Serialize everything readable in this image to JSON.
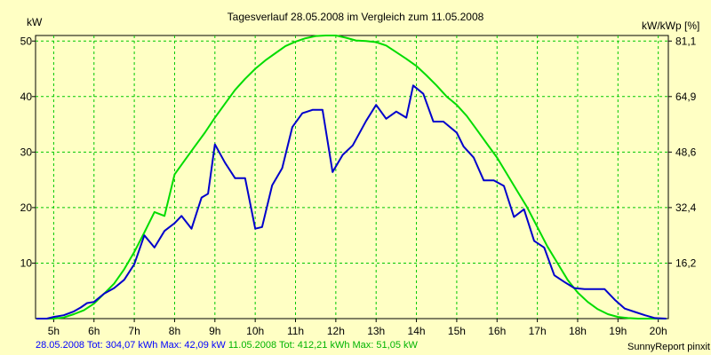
{
  "chart_data": {
    "type": "line",
    "title": "Tagesverlauf 28.05.2008 im Vergleich zum 11.05.2008",
    "ylabel_left": "kW",
    "ylabel_right": "kW/kWp [%]",
    "x_ticks": [
      "5h",
      "6h",
      "7h",
      "8h",
      "9h",
      "10h",
      "11h",
      "12h",
      "13h",
      "14h",
      "15h",
      "16h",
      "17h",
      "18h",
      "19h",
      "20h"
    ],
    "x_tick_hours": [
      5,
      6,
      7,
      8,
      9,
      10,
      11,
      12,
      13,
      14,
      15,
      16,
      17,
      18,
      19,
      20
    ],
    "xlim": [
      4.55,
      20.25
    ],
    "ylim": [
      0,
      51
    ],
    "y_ticks": [
      10,
      20,
      30,
      40,
      50
    ],
    "y_tick_labels": [
      "10",
      "20",
      "30",
      "40",
      "50"
    ],
    "y2_ticks": [
      16.2,
      32.4,
      48.6,
      64.9,
      81.1
    ],
    "y2_tick_labels": [
      "16,2",
      "32,4",
      "48,6",
      "64,9",
      "81,1"
    ],
    "grid": true,
    "series": [
      {
        "name": "28.05.2008",
        "color": "#0000cc",
        "x": [
          4.57,
          4.83,
          5.0,
          5.25,
          5.5,
          5.67,
          5.83,
          6.0,
          6.25,
          6.5,
          6.75,
          7.0,
          7.25,
          7.5,
          7.75,
          8.0,
          8.17,
          8.42,
          8.67,
          8.83,
          9.0,
          9.25,
          9.5,
          9.75,
          10.0,
          10.17,
          10.42,
          10.67,
          10.92,
          11.17,
          11.42,
          11.67,
          11.92,
          12.17,
          12.42,
          12.75,
          13.0,
          13.25,
          13.5,
          13.75,
          13.92,
          14.17,
          14.42,
          14.67,
          15.0,
          15.17,
          15.42,
          15.67,
          15.92,
          16.17,
          16.42,
          16.67,
          16.92,
          17.17,
          17.42,
          17.67,
          17.92,
          18.17,
          18.42,
          18.67,
          18.92,
          19.17,
          19.42,
          19.67,
          19.92,
          20.2
        ],
        "y": [
          0,
          0,
          0.3,
          0.6,
          1.3,
          2.0,
          2.8,
          3.0,
          4.5,
          5.5,
          7.0,
          9.8,
          15.0,
          12.8,
          15.8,
          17.2,
          18.5,
          16.2,
          21.8,
          22.5,
          31.4,
          28.1,
          25.3,
          25.3,
          16.2,
          16.5,
          24.0,
          27.1,
          34.5,
          37.0,
          37.6,
          37.6,
          26.4,
          29.5,
          31.2,
          35.6,
          38.5,
          36.0,
          37.3,
          36.2,
          42.0,
          40.5,
          35.5,
          35.5,
          33.5,
          31.0,
          29.0,
          24.9,
          24.9,
          23.9,
          18.3,
          19.7,
          14.0,
          12.8,
          7.8,
          6.6,
          5.5,
          5.3,
          5.3,
          5.3,
          3.4,
          1.8,
          1.2,
          0.6,
          0.1,
          0
        ]
      },
      {
        "name": "11.05.2008",
        "color": "#00dc00",
        "x": [
          4.57,
          4.83,
          5.0,
          5.25,
          5.5,
          5.75,
          6.0,
          6.25,
          6.5,
          6.75,
          7.0,
          7.25,
          7.5,
          7.75,
          8.0,
          8.25,
          8.5,
          8.75,
          9.0,
          9.25,
          9.5,
          9.75,
          10.0,
          10.25,
          10.5,
          10.75,
          11.0,
          11.25,
          11.5,
          11.75,
          12.0,
          12.25,
          12.5,
          12.75,
          13.0,
          13.25,
          13.5,
          13.75,
          14.0,
          14.25,
          14.5,
          14.75,
          15.0,
          15.25,
          15.5,
          15.75,
          16.0,
          16.25,
          16.5,
          16.75,
          17.0,
          17.25,
          17.5,
          17.75,
          18.0,
          18.25,
          18.5,
          18.75,
          19.0,
          19.25,
          19.5,
          19.75,
          20.0,
          20.2
        ],
        "y": [
          0,
          0,
          0,
          0.2,
          0.8,
          1.5,
          2.7,
          4.5,
          6.3,
          8.9,
          12.0,
          15.5,
          19.2,
          18.5,
          26.0,
          28.5,
          31.0,
          33.5,
          36.2,
          38.7,
          41.2,
          43.2,
          45.0,
          46.5,
          47.8,
          49.1,
          49.9,
          50.5,
          50.9,
          51.0,
          51.0,
          50.6,
          50.1,
          50.0,
          49.8,
          49.2,
          48.0,
          46.8,
          45.5,
          43.8,
          42.0,
          40.0,
          38.5,
          36.5,
          34.0,
          31.5,
          29.0,
          26.0,
          23.0,
          20.0,
          16.5,
          13.0,
          10.0,
          7.0,
          4.7,
          3.0,
          1.7,
          0.8,
          0.3,
          0.1,
          0,
          0,
          0,
          0
        ]
      }
    ]
  },
  "header": {
    "title": "Tagesverlauf 28.05.2008 im Vergleich zum 11.05.2008",
    "ylabel_left": "kW",
    "ylabel_right": "kW/kWp [%]"
  },
  "footer": {
    "series1_label": "28.05.2008 Tot: 304,07 kWh Max: 42,09 kW",
    "series2_label": "11.05.2008 Tot: 412,21 kWh Max: 51,05 kW",
    "credit": "SunnyReport pinxit"
  }
}
